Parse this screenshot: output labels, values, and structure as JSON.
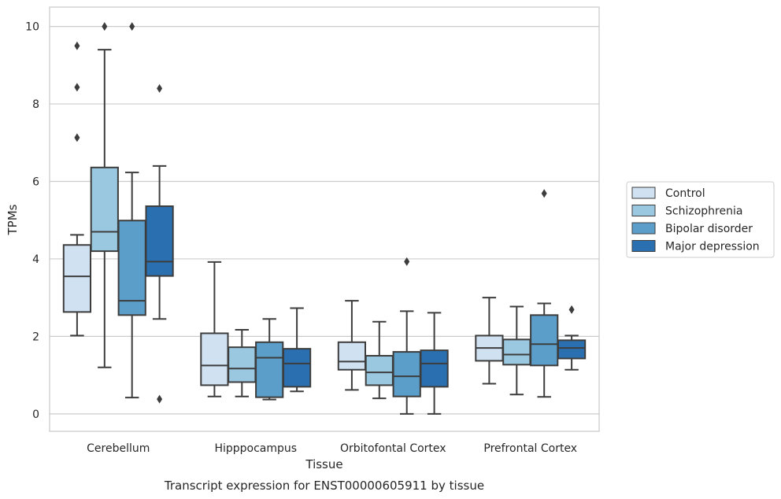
{
  "chart_data": {
    "type": "box",
    "title": "",
    "caption": "Transcript expression for ENST00000605911 by tissue",
    "xlabel": "Tissue",
    "ylabel": "TPMs",
    "ylim": [
      -0.45,
      10.5
    ],
    "yticks": [
      0,
      2,
      4,
      6,
      8,
      10
    ],
    "grid": "horizontal",
    "legend_position": "right",
    "categories": [
      "Cerebellum",
      "Hipppocampus",
      "Orbitofontal Cortex",
      "Prefrontal Cortex"
    ],
    "series": [
      {
        "name": "Control",
        "color": "#d0e1f2",
        "boxes": [
          {
            "whislo": 2.02,
            "q1": 2.63,
            "med": 3.55,
            "q3": 4.36,
            "whishi": 4.62,
            "fliers": [
              7.13,
              8.43,
              9.5
            ]
          },
          {
            "whislo": 0.45,
            "q1": 0.74,
            "med": 1.25,
            "q3": 2.08,
            "whishi": 3.92,
            "fliers": []
          },
          {
            "whislo": 0.62,
            "q1": 1.14,
            "med": 1.35,
            "q3": 1.85,
            "whishi": 2.92,
            "fliers": []
          },
          {
            "whislo": 0.78,
            "q1": 1.37,
            "med": 1.7,
            "q3": 2.02,
            "whishi": 3.0,
            "fliers": []
          }
        ]
      },
      {
        "name": "Schizophrenia",
        "color": "#9ac8e0",
        "boxes": [
          {
            "whislo": 1.2,
            "q1": 4.2,
            "med": 4.7,
            "q3": 6.36,
            "whishi": 9.4,
            "fliers": [
              10.0
            ]
          },
          {
            "whislo": 0.45,
            "q1": 0.82,
            "med": 1.17,
            "q3": 1.72,
            "whishi": 2.17,
            "fliers": []
          },
          {
            "whislo": 0.4,
            "q1": 0.74,
            "med": 1.07,
            "q3": 1.5,
            "whishi": 2.38,
            "fliers": []
          },
          {
            "whislo": 0.5,
            "q1": 1.27,
            "med": 1.53,
            "q3": 1.92,
            "whishi": 2.77,
            "fliers": []
          }
        ]
      },
      {
        "name": "Bipolar disorder",
        "color": "#5a9ec9",
        "boxes": [
          {
            "whislo": 0.42,
            "q1": 2.55,
            "med": 2.92,
            "q3": 4.99,
            "whishi": 6.23,
            "fliers": [
              10.0
            ]
          },
          {
            "whislo": 0.37,
            "q1": 0.43,
            "med": 1.45,
            "q3": 1.85,
            "whishi": 2.45,
            "fliers": []
          },
          {
            "whislo": 0.0,
            "q1": 0.45,
            "med": 0.97,
            "q3": 1.6,
            "whishi": 2.65,
            "fliers": [
              3.93
            ]
          },
          {
            "whislo": 0.44,
            "q1": 1.25,
            "med": 1.8,
            "q3": 2.55,
            "whishi": 2.85,
            "fliers": [
              5.69
            ]
          }
        ]
      },
      {
        "name": "Major depression",
        "color": "#2a70b0",
        "boxes": [
          {
            "whislo": 2.45,
            "q1": 3.56,
            "med": 3.93,
            "q3": 5.36,
            "whishi": 6.4,
            "fliers": [
              0.38,
              8.4
            ]
          },
          {
            "whislo": 0.58,
            "q1": 0.7,
            "med": 1.3,
            "q3": 1.68,
            "whishi": 2.73,
            "fliers": []
          },
          {
            "whislo": 0.0,
            "q1": 0.7,
            "med": 1.3,
            "q3": 1.64,
            "whishi": 2.61,
            "fliers": []
          },
          {
            "whislo": 1.14,
            "q1": 1.43,
            "med": 1.7,
            "q3": 1.9,
            "whishi": 2.02,
            "fliers": [
              2.69
            ]
          }
        ]
      }
    ]
  }
}
